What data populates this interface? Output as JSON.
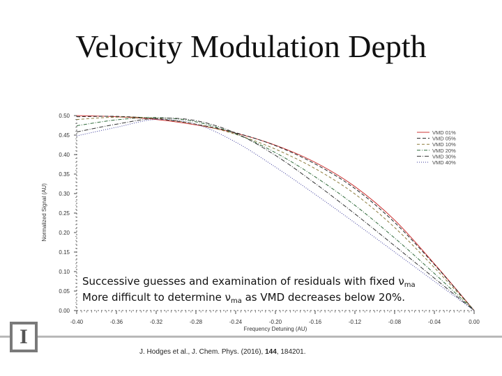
{
  "slide": {
    "title": "Velocity Modulation Depth",
    "note_line1_prefix": "Successive guesses and examination of residuals with fixed ν",
    "note_line1_sub": "ma",
    "note_line2_prefix": "More difficult to determine ν",
    "note_line2_sub": "ma",
    "note_line2_suffix": " as VMD decreases below 20%.",
    "citation_prefix": "J. Hodges et al., J. Chem. Phys. (2016), ",
    "citation_volume": "144",
    "citation_suffix": ", 184201.",
    "logo_glyph": "I",
    "logo_icon": "university-block-i-logo"
  },
  "chart_data": {
    "type": "line",
    "xlabel": "Frequency Detuning (AU)",
    "ylabel": "Normalized Signal (AU)",
    "xlim": [
      -0.4,
      0.0
    ],
    "ylim": [
      0.0,
      0.5
    ],
    "xticks": [
      "-0.40",
      "-0.36",
      "-0.32",
      "-0.28",
      "-0.24",
      "-0.20",
      "-0.16",
      "-0.12",
      "-0.08",
      "-0.04",
      "0.00"
    ],
    "yticks": [
      "0.00",
      "0.05",
      "0.10",
      "0.15",
      "0.20",
      "0.25",
      "0.30",
      "0.35",
      "0.40",
      "0.45",
      "0.50"
    ],
    "legend_position": "top-right",
    "grid": false,
    "x": [
      -0.4,
      -0.36,
      -0.32,
      -0.28,
      -0.24,
      -0.2,
      -0.16,
      -0.12,
      -0.08,
      -0.04,
      0.0
    ],
    "series": [
      {
        "name": "VMD 01%",
        "color": "#cc3333",
        "dash": "solid",
        "values": [
          0.5,
          0.497,
          0.49,
          0.476,
          0.455,
          0.424,
          0.38,
          0.318,
          0.232,
          0.12,
          0.0
        ]
      },
      {
        "name": "VMD 05%",
        "color": "#222222",
        "dash": "5,3",
        "values": [
          0.497,
          0.498,
          0.492,
          0.478,
          0.456,
          0.423,
          0.376,
          0.313,
          0.226,
          0.118,
          0.0
        ]
      },
      {
        "name": "VMD 10%",
        "color": "#8a7a3a",
        "dash": "4,3",
        "values": [
          0.49,
          0.496,
          0.493,
          0.478,
          0.452,
          0.414,
          0.364,
          0.299,
          0.213,
          0.11,
          0.0
        ]
      },
      {
        "name": "VMD 20%",
        "color": "#2f6a3a",
        "dash": "5,2,1,2",
        "values": [
          0.474,
          0.489,
          0.495,
          0.484,
          0.453,
          0.405,
          0.343,
          0.27,
          0.186,
          0.095,
          0.0
        ]
      },
      {
        "name": "VMD 30%",
        "color": "#333333",
        "dash": "6,2,1,2",
        "values": [
          0.458,
          0.478,
          0.493,
          0.487,
          0.455,
          0.398,
          0.326,
          0.248,
          0.166,
          0.083,
          0.0
        ]
      },
      {
        "name": "VMD 40%",
        "color": "#3a3a9a",
        "dash": "1,2",
        "values": [
          0.448,
          0.47,
          0.49,
          0.478,
          0.432,
          0.368,
          0.298,
          0.225,
          0.15,
          0.075,
          0.0
        ]
      }
    ]
  }
}
